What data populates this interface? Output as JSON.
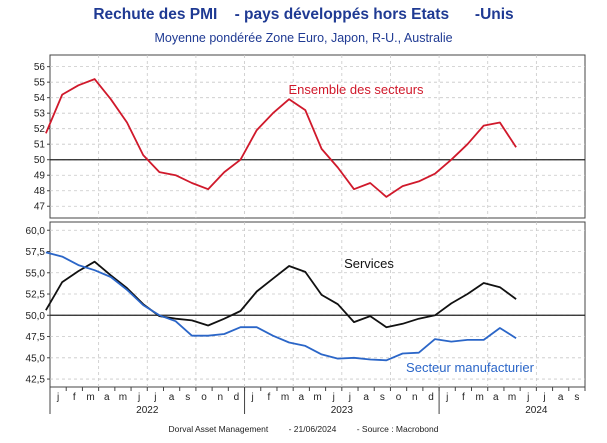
{
  "chart_data": {
    "type": "line",
    "title": "Rechute des PMI    - pays développés hors Etats      -Unis",
    "subtitle": "Moyenne pondérée Zone Euro, Japon, R-U., Australie",
    "x_months": [
      "2021-12",
      "2022-01",
      "2022-02",
      "2022-03",
      "2022-04",
      "2022-05",
      "2022-06",
      "2022-07",
      "2022-08",
      "2022-09",
      "2022-10",
      "2022-11",
      "2022-12",
      "2023-01",
      "2023-02",
      "2023-03",
      "2023-04",
      "2023-05",
      "2023-06",
      "2023-07",
      "2023-08",
      "2023-09",
      "2023-10",
      "2023-11",
      "2023-12",
      "2024-01",
      "2024-02",
      "2024-03",
      "2024-04",
      "2024-05",
      "2024-06"
    ],
    "x_tick_labels": [
      "j",
      "f",
      "m",
      "a",
      "m",
      "j",
      "j",
      "a",
      "s",
      "o",
      "n",
      "d",
      "j",
      "f",
      "m",
      "a",
      "m",
      "j",
      "j",
      "a",
      "s",
      "o",
      "n",
      "d",
      "j",
      "f",
      "m",
      "a",
      "m",
      "j",
      "j",
      "a",
      "s"
    ],
    "year_labels": [
      "2022",
      "2023",
      "2024"
    ],
    "panels": [
      {
        "ylim": [
          46.5,
          56.3
        ],
        "yticks": [
          "56",
          "55",
          "54",
          "53",
          "52",
          "51",
          "50",
          "49",
          "48",
          "47"
        ],
        "reference_line": 50,
        "series": [
          {
            "name": "Ensemble des secteurs",
            "color": "#d0192b",
            "values": [
              51.7,
              54.2,
              54.8,
              55.2,
              53.9,
              52.4,
              50.3,
              49.2,
              49.0,
              48.5,
              48.1,
              49.2,
              50.0,
              51.9,
              53.0,
              53.9,
              53.2,
              50.7,
              49.5,
              48.1,
              48.5,
              47.6,
              48.3,
              48.6,
              49.1,
              50.0,
              51.0,
              52.2,
              52.4,
              50.8,
              null
            ]
          }
        ]
      },
      {
        "ylim": [
          41.8,
          60.5
        ],
        "yticks": [
          "60,0",
          "57,5",
          "55,0",
          "52,5",
          "50,0",
          "47,5",
          "45,0",
          "42,5"
        ],
        "reference_line": 50,
        "series": [
          {
            "name": "Services",
            "color": "#111111",
            "values": [
              50.6,
              53.9,
              55.2,
              56.3,
              54.7,
              53.2,
              51.3,
              49.9,
              49.6,
              49.4,
              48.8,
              49.6,
              50.5,
              52.8,
              54.3,
              55.8,
              55.1,
              52.4,
              51.3,
              49.2,
              49.9,
              48.6,
              49.0,
              49.6,
              50.0,
              51.4,
              52.5,
              53.8,
              53.3,
              51.9,
              null
            ]
          },
          {
            "name": "Secteur manufacturier",
            "color": "#2b66c8",
            "values": [
              57.4,
              56.9,
              55.9,
              55.3,
              54.5,
              53.0,
              51.2,
              50.0,
              49.3,
              47.6,
              47.6,
              47.8,
              48.6,
              48.6,
              47.6,
              46.8,
              46.4,
              45.4,
              44.9,
              45.0,
              44.8,
              44.7,
              45.5,
              45.6,
              47.2,
              46.9,
              47.1,
              47.1,
              48.5,
              47.3,
              null
            ]
          }
        ]
      }
    ],
    "grid": true
  },
  "footer": {
    "source_company": "Dorval Asset Management",
    "date": "- 21/06/2024",
    "source": "- Source : Macrobond"
  }
}
